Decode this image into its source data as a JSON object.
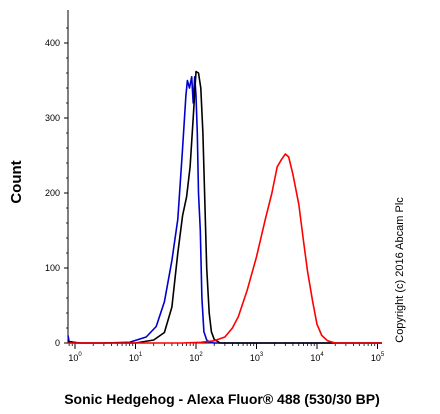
{
  "chart_data": {
    "type": "line",
    "title": "",
    "xlabel": "Sonic Hedgehog - Alexa Fluor® 488 (530/30 BP)",
    "ylabel": "Count",
    "xscale": "log",
    "xlim": [
      0.6,
      300000
    ],
    "ylim": [
      0,
      420
    ],
    "x_ticks": [
      {
        "base": "10",
        "exp": "0"
      },
      {
        "base": "10",
        "exp": "1"
      },
      {
        "base": "10",
        "exp": "2"
      },
      {
        "base": "10",
        "exp": "3"
      },
      {
        "base": "10",
        "exp": "4"
      },
      {
        "base": "10",
        "exp": "5"
      }
    ],
    "y_ticks": [
      "0",
      "100",
      "200",
      "300",
      "400"
    ],
    "grid": false,
    "legend": "none",
    "annotation": "Copyright (c) 2016 Abcam Plc",
    "series": [
      {
        "color": "#0000cc",
        "x": [
          0.6,
          0.8,
          1.2,
          3,
          8,
          15,
          22,
          30,
          40,
          50,
          60,
          68,
          72,
          78,
          85,
          90,
          95,
          100,
          105,
          110,
          118,
          125,
          135,
          150,
          170,
          200,
          300000
        ],
        "y": [
          10,
          2,
          0,
          0,
          1,
          8,
          22,
          55,
          110,
          165,
          260,
          330,
          350,
          340,
          355,
          320,
          355,
          330,
          280,
          200,
          150,
          60,
          15,
          4,
          1,
          0,
          0
        ]
      },
      {
        "color": "#000000",
        "x": [
          0.6,
          1,
          3,
          10,
          20,
          30,
          40,
          50,
          60,
          70,
          80,
          90,
          100,
          110,
          120,
          130,
          140,
          150,
          165,
          180,
          200,
          250,
          300000
        ],
        "y": [
          2,
          0,
          0,
          0,
          4,
          14,
          48,
          120,
          170,
          195,
          235,
          300,
          362,
          360,
          340,
          280,
          190,
          100,
          40,
          15,
          5,
          0,
          0
        ]
      },
      {
        "color": "#ff0000",
        "x": [
          0.6,
          10,
          60,
          120,
          200,
          300,
          400,
          500,
          700,
          1000,
          1400,
          1800,
          2200,
          2600,
          3000,
          3400,
          4000,
          5000,
          6000,
          7000,
          8500,
          10000,
          12000,
          15000,
          20000,
          300000
        ],
        "y": [
          0,
          0,
          0,
          1,
          3,
          8,
          20,
          35,
          70,
          115,
          165,
          200,
          235,
          245,
          252,
          248,
          225,
          185,
          135,
          95,
          55,
          25,
          10,
          3,
          0,
          0
        ]
      }
    ]
  }
}
